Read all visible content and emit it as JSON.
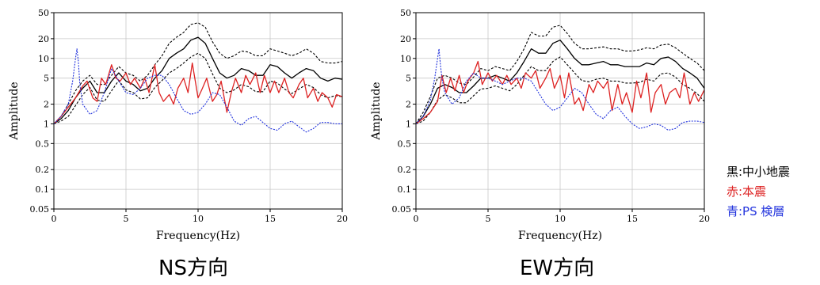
{
  "chart_data": [
    {
      "type": "line",
      "caption": "NS方向",
      "xlabel": "Frequency(Hz)",
      "ylabel": "Amplitude",
      "xlim": [
        0,
        20
      ],
      "ylim": [
        0.05,
        50
      ],
      "yscale": "log",
      "grid": true,
      "xticks": [
        0,
        5,
        10,
        15,
        20
      ],
      "yticks": [
        0.05,
        0.1,
        0.2,
        0.5,
        1,
        2,
        5,
        10,
        20,
        50
      ],
      "series": [
        {
          "color": "#000000",
          "style": "solid",
          "x": [
            0,
            0.5,
            1,
            1.5,
            2,
            2.5,
            3,
            3.5,
            4,
            4.5,
            5,
            5.5,
            6,
            6.5,
            7,
            7.5,
            8,
            8.5,
            9,
            9.5,
            10,
            10.5,
            11,
            11.5,
            12,
            12.5,
            13,
            13.5,
            14,
            14.5,
            15,
            15.5,
            16,
            16.5,
            17,
            17.5,
            18,
            18.5,
            19,
            19.5,
            20
          ],
          "y": [
            1,
            1.2,
            1.6,
            2.5,
            3.5,
            4.5,
            3,
            3,
            4.5,
            6,
            4.5,
            4,
            3.2,
            3.5,
            5,
            6.5,
            10,
            12,
            14,
            19,
            21,
            17,
            10,
            6,
            5,
            5.5,
            7,
            6.5,
            5.5,
            5.5,
            8,
            7.5,
            6,
            5,
            6,
            7,
            6.5,
            5,
            4.5,
            5,
            4.8
          ]
        },
        {
          "color": "#000000",
          "style": "dashed",
          "x": [
            0,
            0.5,
            1,
            1.5,
            2,
            2.5,
            3,
            3.5,
            4,
            4.5,
            5,
            5.5,
            6,
            6.5,
            7,
            7.5,
            8,
            8.5,
            9,
            9.5,
            10,
            10.5,
            11,
            11.5,
            12,
            12.5,
            13,
            13.5,
            14,
            14.5,
            15,
            15.5,
            16,
            16.5,
            17,
            17.5,
            18,
            18.5,
            19,
            19.5,
            20
          ],
          "y": [
            1,
            1.3,
            2,
            3.2,
            4.5,
            5.5,
            4,
            4,
            5.5,
            7.5,
            6,
            5.5,
            4.5,
            5.5,
            8,
            11,
            17,
            21,
            25,
            33,
            35,
            30,
            18,
            12,
            10,
            11,
            13,
            12.5,
            11,
            11,
            14,
            13,
            12,
            11,
            12,
            14,
            12,
            9,
            8.5,
            8.5,
            9
          ]
        },
        {
          "color": "#000000",
          "style": "dashed",
          "x": [
            0,
            0.5,
            1,
            1.5,
            2,
            2.5,
            3,
            3.5,
            4,
            4.5,
            5,
            5.5,
            6,
            6.5,
            7,
            7.5,
            8,
            8.5,
            9,
            9.5,
            10,
            10.5,
            11,
            11.5,
            12,
            12.5,
            13,
            13.5,
            14,
            14.5,
            15,
            15.5,
            16,
            16.5,
            17,
            17.5,
            18,
            18.5,
            19,
            19.5,
            20
          ],
          "y": [
            1,
            1.1,
            1.3,
            1.9,
            2.8,
            3.6,
            2.3,
            2.2,
            3.2,
            4.6,
            3.3,
            3,
            2.4,
            2.5,
            3.6,
            4.6,
            6,
            7,
            8.5,
            10.5,
            12,
            10,
            5.8,
            3.5,
            3,
            3.3,
            4,
            3.7,
            3.1,
            3.1,
            4.5,
            4.2,
            3.4,
            2.9,
            3.4,
            4,
            3.6,
            2.8,
            2.5,
            2.7,
            2.6
          ]
        },
        {
          "color": "#dd2222",
          "style": "solid",
          "x": [
            0,
            0.5,
            1,
            1.5,
            2,
            2.3,
            2.7,
            3,
            3.3,
            3.6,
            4,
            4.3,
            4.6,
            5,
            5.3,
            5.6,
            6,
            6.3,
            6.6,
            7,
            7.3,
            7.6,
            8,
            8.3,
            8.6,
            9,
            9.3,
            9.6,
            10,
            10.3,
            10.6,
            11,
            11.3,
            11.6,
            12,
            12.3,
            12.6,
            13,
            13.3,
            13.6,
            14,
            14.3,
            14.6,
            15,
            15.3,
            15.6,
            16,
            16.3,
            16.6,
            17,
            17.3,
            17.6,
            18,
            18.3,
            18.6,
            19,
            19.3,
            19.6,
            20
          ],
          "y": [
            1,
            1.3,
            1.8,
            2.5,
            3.8,
            4.5,
            2.5,
            2.2,
            5,
            4,
            8,
            5,
            4.5,
            6,
            4,
            5,
            3.5,
            5,
            3,
            8,
            3,
            2.2,
            2.8,
            2,
            3.5,
            5,
            3,
            8.5,
            2.5,
            3.5,
            5,
            2.2,
            2.8,
            4.5,
            1.5,
            3,
            5,
            3,
            5.5,
            4,
            6,
            3,
            5.5,
            3,
            4.5,
            3,
            5,
            3,
            2.5,
            4,
            5,
            2.5,
            3.5,
            2.2,
            3,
            2.5,
            1.8,
            2.8,
            2.6
          ]
        },
        {
          "color": "#2233dd",
          "style": "dotted",
          "x": [
            0,
            0.5,
            1,
            1.3,
            1.5,
            1.6,
            1.7,
            1.8,
            2,
            2.5,
            3,
            3.5,
            4,
            4.5,
            5,
            5.5,
            6,
            6.5,
            7,
            7.5,
            8,
            8.5,
            9,
            9.5,
            10,
            10.5,
            11,
            11.5,
            12,
            12.5,
            13,
            13.5,
            14,
            14.5,
            15,
            15.5,
            16,
            16.5,
            17,
            17.5,
            18,
            18.5,
            19,
            19.5,
            20
          ],
          "y": [
            1,
            1.3,
            2,
            4.5,
            10,
            14,
            9,
            4,
            2,
            1.4,
            1.6,
            3,
            7,
            4.5,
            3,
            2.8,
            3.5,
            5,
            5.5,
            5.5,
            4,
            2.5,
            1.6,
            1.4,
            1.5,
            2,
            3,
            2.8,
            1.8,
            1.1,
            0.95,
            1.2,
            1.3,
            1.05,
            0.85,
            0.8,
            1,
            1.1,
            0.9,
            0.75,
            0.85,
            1.05,
            1.05,
            1,
            1
          ]
        }
      ]
    },
    {
      "type": "line",
      "caption": "EW方向",
      "xlabel": "Frequency(Hz)",
      "ylabel": "Amplitude",
      "xlim": [
        0,
        20
      ],
      "ylim": [
        0.05,
        50
      ],
      "yscale": "log",
      "grid": true,
      "xticks": [
        0,
        5,
        10,
        15,
        20
      ],
      "yticks": [
        0.05,
        0.1,
        0.2,
        0.5,
        1,
        2,
        5,
        10,
        20,
        50
      ],
      "series": [
        {
          "color": "#000000",
          "style": "solid",
          "x": [
            0,
            0.5,
            1,
            1.5,
            2,
            2.5,
            3,
            3.5,
            4,
            4.5,
            5,
            5.5,
            6,
            6.5,
            7,
            7.5,
            8,
            8.5,
            9,
            9.5,
            10,
            10.5,
            11,
            11.5,
            12,
            12.5,
            13,
            13.5,
            14,
            14.5,
            15,
            15.5,
            16,
            16.5,
            17,
            17.5,
            18,
            18.5,
            19,
            19.5,
            20
          ],
          "y": [
            1,
            1.3,
            2,
            3.5,
            4,
            3.6,
            3,
            3,
            3.8,
            5,
            5,
            5.5,
            5,
            4.5,
            6,
            9,
            14,
            12,
            12,
            17,
            19,
            14,
            10,
            8,
            8,
            8.5,
            9,
            8,
            8,
            7.5,
            7.5,
            7.5,
            8.5,
            8,
            10,
            10.5,
            9,
            7,
            6,
            5,
            3.5
          ]
        },
        {
          "color": "#000000",
          "style": "dashed",
          "x": [
            0,
            0.5,
            1,
            1.5,
            2,
            2.5,
            3,
            3.5,
            4,
            4.5,
            5,
            5.5,
            6,
            6.5,
            7,
            7.5,
            8,
            8.5,
            9,
            9.5,
            10,
            10.5,
            11,
            11.5,
            12,
            12.5,
            13,
            13.5,
            14,
            14.5,
            15,
            15.5,
            16,
            16.5,
            17,
            17.5,
            18,
            18.5,
            19,
            19.5,
            20
          ],
          "y": [
            1,
            1.5,
            2.6,
            5,
            5.5,
            5,
            4.2,
            4,
            5.2,
            7,
            6.5,
            7.5,
            7,
            6.5,
            9,
            14,
            25,
            22,
            22,
            30,
            32,
            24,
            17,
            14,
            14,
            14.5,
            15,
            14,
            14,
            13,
            13,
            13.5,
            14.5,
            14,
            16,
            16.5,
            14.5,
            12,
            10,
            8.5,
            6.5
          ]
        },
        {
          "color": "#000000",
          "style": "dashed",
          "x": [
            0,
            0.5,
            1,
            1.5,
            2,
            2.5,
            3,
            3.5,
            4,
            4.5,
            5,
            5.5,
            6,
            6.5,
            7,
            7.5,
            8,
            8.5,
            9,
            9.5,
            10,
            10.5,
            11,
            11.5,
            12,
            12.5,
            13,
            13.5,
            14,
            14.5,
            15,
            15.5,
            16,
            16.5,
            17,
            17.5,
            18,
            18.5,
            19,
            19.5,
            20
          ],
          "y": [
            1,
            1.1,
            1.5,
            2.3,
            2.8,
            2.5,
            2.1,
            2.1,
            2.7,
            3.4,
            3.5,
            3.8,
            3.5,
            3.2,
            4,
            5.5,
            7.5,
            6.5,
            6.5,
            9,
            10.5,
            8,
            6,
            4.6,
            4.4,
            4.8,
            5,
            4.5,
            4.5,
            4.2,
            4.2,
            4.3,
            4.8,
            4.5,
            5.8,
            6,
            5.2,
            4,
            3.5,
            2.9,
            2.2
          ]
        },
        {
          "color": "#dd2222",
          "style": "solid",
          "x": [
            0,
            0.5,
            1,
            1.5,
            1.8,
            2.1,
            2.4,
            2.7,
            3,
            3.3,
            3.6,
            4,
            4.3,
            4.6,
            5,
            5.3,
            5.6,
            6,
            6.3,
            6.6,
            7,
            7.3,
            7.6,
            8,
            8.3,
            8.6,
            9,
            9.3,
            9.6,
            10,
            10.3,
            10.6,
            11,
            11.3,
            11.6,
            12,
            12.3,
            12.6,
            13,
            13.3,
            13.6,
            14,
            14.3,
            14.6,
            15,
            15.3,
            15.6,
            16,
            16.3,
            16.6,
            17,
            17.3,
            17.6,
            18,
            18.3,
            18.6,
            19,
            19.3,
            19.6,
            20
          ],
          "y": [
            1,
            1.2,
            1.5,
            2.2,
            5.5,
            3,
            5,
            3.2,
            5.5,
            3,
            4.5,
            6,
            9,
            4,
            6,
            4.5,
            5.5,
            4,
            5.5,
            4,
            5,
            3.5,
            6,
            5,
            6.5,
            3.5,
            5,
            7,
            3.5,
            5.5,
            2.5,
            6,
            2,
            2.5,
            1.6,
            4,
            3,
            4.5,
            3.5,
            4.5,
            1.6,
            4,
            2,
            3,
            1.5,
            4.5,
            2.5,
            6,
            1.5,
            3,
            4,
            2,
            3,
            3.5,
            2.5,
            6,
            2,
            3,
            2.2,
            3.3
          ]
        },
        {
          "color": "#2233dd",
          "style": "dotted",
          "x": [
            0,
            0.5,
            1,
            1.3,
            1.5,
            1.6,
            1.7,
            1.8,
            2,
            2.5,
            3,
            3.5,
            4,
            4.5,
            5,
            5.5,
            6,
            6.5,
            7,
            7.5,
            8,
            8.5,
            9,
            9.5,
            10,
            10.5,
            11,
            11.5,
            12,
            12.5,
            13,
            13.5,
            14,
            14.5,
            15,
            15.5,
            16,
            16.5,
            17,
            17.5,
            18,
            18.5,
            19,
            19.5,
            20
          ],
          "y": [
            1,
            1.3,
            2.3,
            5,
            10,
            14,
            8,
            5,
            3,
            2,
            2.5,
            4.5,
            6,
            5,
            5,
            4.5,
            4,
            4.5,
            5,
            5,
            4.5,
            3,
            2,
            1.6,
            1.8,
            2.5,
            3.5,
            3,
            2,
            1.4,
            1.2,
            1.6,
            1.8,
            1.3,
            1,
            0.85,
            0.9,
            1,
            0.95,
            0.8,
            0.85,
            1.05,
            1.1,
            1.1,
            1.05
          ]
        }
      ]
    }
  ],
  "legend": [
    {
      "label": "黒:中小地震",
      "color": "#000000"
    },
    {
      "label": "赤:本震",
      "color": "#dd2222"
    },
    {
      "label": "青:PS 検層",
      "color": "#2233dd"
    }
  ]
}
